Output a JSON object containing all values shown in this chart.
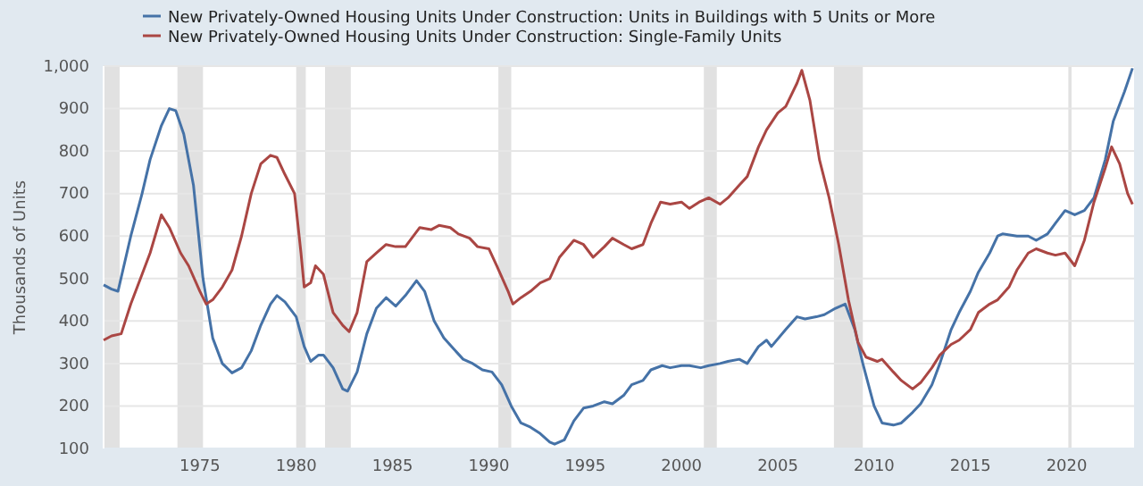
{
  "chart_data": {
    "type": "line",
    "ylabel": "Thousands of Units",
    "legend": "top left",
    "grid": "y",
    "line_style": "solid",
    "xlim": [
      "1970-01",
      "2023-07"
    ],
    "xticks": [
      {
        "value": "1975",
        "label": "1975"
      },
      {
        "value": "1980",
        "label": "1980"
      },
      {
        "value": "1985",
        "label": "1985"
      },
      {
        "value": "1990",
        "label": "1990"
      },
      {
        "value": "1995",
        "label": "1995"
      },
      {
        "value": "2000",
        "label": "2000"
      },
      {
        "value": "2005",
        "label": "2005"
      },
      {
        "value": "2010",
        "label": "2010"
      },
      {
        "value": "2015",
        "label": "2015"
      },
      {
        "value": "2020",
        "label": "2020"
      }
    ],
    "ylim": [
      100,
      1000
    ],
    "yticks": [
      100,
      200,
      300,
      400,
      500,
      600,
      700,
      800,
      900,
      {
        "value": 1000,
        "label": "1,000"
      }
    ],
    "bands": [
      {
        "axis": "x",
        "from": "1969-12",
        "to": "1970-11",
        "color": "#e1e1e1"
      },
      {
        "axis": "x",
        "from": "1973-11",
        "to": "1975-03",
        "color": "#e1e1e1"
      },
      {
        "axis": "x",
        "from": "1980-01",
        "to": "1980-07",
        "color": "#e1e1e1"
      },
      {
        "axis": "x",
        "from": "1981-07",
        "to": "1982-11",
        "color": "#e1e1e1"
      },
      {
        "axis": "x",
        "from": "1990-07",
        "to": "1991-03",
        "color": "#e1e1e1"
      },
      {
        "axis": "x",
        "from": "2001-03",
        "to": "2001-11",
        "color": "#e1e1e1"
      },
      {
        "axis": "x",
        "from": "2007-12",
        "to": "2009-06",
        "color": "#e1e1e1"
      },
      {
        "axis": "x",
        "from": "2020-02",
        "to": "2020-04",
        "color": "#e1e1e1"
      }
    ],
    "series": [
      {
        "name": "New Privately-Owned Housing Units Under Construction: Units in Buildings with 5 Units or More",
        "color": "#4572a7",
        "x": [
          "1970-01",
          "1970-06",
          "1970-10",
          "1971-06",
          "1972-01",
          "1972-06",
          "1973-01",
          "1973-06",
          "1973-10",
          "1974-03",
          "1974-09",
          "1975-03",
          "1975-09",
          "1976-03",
          "1976-09",
          "1977-03",
          "1977-09",
          "1978-03",
          "1978-09",
          "1979-01",
          "1979-06",
          "1980-01",
          "1980-06",
          "1980-10",
          "1981-03",
          "1981-06",
          "1981-12",
          "1982-06",
          "1982-09",
          "1983-03",
          "1983-09",
          "1984-03",
          "1984-09",
          "1985-03",
          "1985-09",
          "1986-04",
          "1986-09",
          "1987-03",
          "1987-09",
          "1988-03",
          "1988-09",
          "1989-03",
          "1989-09",
          "1990-03",
          "1990-09",
          "1991-03",
          "1991-09",
          "1992-03",
          "1992-09",
          "1993-03",
          "1993-06",
          "1993-12",
          "1994-06",
          "1994-12",
          "1995-06",
          "1996-01",
          "1996-06",
          "1997-01",
          "1997-06",
          "1998-01",
          "1998-06",
          "1999-01",
          "1999-06",
          "2000-01",
          "2000-06",
          "2001-01",
          "2001-06",
          "2002-01",
          "2002-06",
          "2003-01",
          "2003-06",
          "2004-01",
          "2004-06",
          "2004-09",
          "2005-06",
          "2006-01",
          "2006-06",
          "2007-01",
          "2007-06",
          "2008-01",
          "2008-07",
          "2009-01",
          "2009-06",
          "2010-01",
          "2010-06",
          "2011-01",
          "2011-06",
          "2012-01",
          "2012-06",
          "2013-01",
          "2013-06",
          "2014-01",
          "2014-06",
          "2015-01",
          "2015-06",
          "2016-01",
          "2016-06",
          "2016-09",
          "2017-06",
          "2018-01",
          "2018-06",
          "2019-01",
          "2019-06",
          "2019-12",
          "2020-06",
          "2020-12",
          "2021-06",
          "2022-01",
          "2022-06",
          "2023-01",
          "2023-06"
        ],
        "values": [
          485,
          475,
          470,
          600,
          700,
          780,
          860,
          900,
          895,
          840,
          720,
          500,
          360,
          300,
          278,
          290,
          330,
          390,
          440,
          460,
          445,
          410,
          340,
          305,
          320,
          320,
          290,
          240,
          235,
          280,
          370,
          430,
          455,
          435,
          460,
          495,
          470,
          400,
          360,
          335,
          310,
          300,
          285,
          280,
          250,
          200,
          160,
          150,
          135,
          115,
          110,
          120,
          165,
          195,
          200,
          210,
          205,
          225,
          250,
          260,
          285,
          295,
          290,
          295,
          295,
          290,
          295,
          300,
          305,
          310,
          300,
          340,
          355,
          340,
          380,
          410,
          405,
          410,
          415,
          430,
          440,
          380,
          300,
          200,
          160,
          155,
          160,
          185,
          205,
          250,
          300,
          380,
          420,
          470,
          515,
          560,
          600,
          605,
          600,
          600,
          590,
          605,
          630,
          660,
          650,
          660,
          690,
          780,
          870,
          940,
          995
        ]
      },
      {
        "name": "New Privately-Owned Housing Units Under Construction: Single-Family Units",
        "color": "#aa4643",
        "x": [
          "1970-01",
          "1970-06",
          "1970-12",
          "1971-06",
          "1972-01",
          "1972-06",
          "1973-01",
          "1973-06",
          "1974-01",
          "1974-06",
          "1975-01",
          "1975-05",
          "1975-09",
          "1976-03",
          "1976-09",
          "1977-03",
          "1977-09",
          "1978-03",
          "1978-09",
          "1979-01",
          "1979-06",
          "1979-12",
          "1980-04",
          "1980-06",
          "1980-10",
          "1981-01",
          "1981-06",
          "1981-12",
          "1982-06",
          "1982-10",
          "1983-03",
          "1983-09",
          "1984-03",
          "1984-09",
          "1985-03",
          "1985-09",
          "1986-06",
          "1987-01",
          "1987-06",
          "1988-01",
          "1988-06",
          "1989-01",
          "1989-06",
          "1990-01",
          "1990-06",
          "1991-01",
          "1991-04",
          "1991-09",
          "1992-03",
          "1992-09",
          "1993-03",
          "1993-09",
          "1994-06",
          "1994-12",
          "1995-06",
          "1996-01",
          "1996-06",
          "1997-01",
          "1997-06",
          "1998-01",
          "1998-06",
          "1998-12",
          "1999-06",
          "2000-01",
          "2000-06",
          "2000-12",
          "2001-06",
          "2002-01",
          "2002-06",
          "2003-01",
          "2003-06",
          "2004-01",
          "2004-06",
          "2005-01",
          "2005-06",
          "2006-01",
          "2006-04",
          "2006-09",
          "2007-03",
          "2007-09",
          "2008-03",
          "2008-09",
          "2009-03",
          "2009-08",
          "2010-03",
          "2010-06",
          "2011-01",
          "2011-06",
          "2012-01",
          "2012-06",
          "2013-01",
          "2013-06",
          "2014-01",
          "2014-06",
          "2015-01",
          "2015-06",
          "2016-01",
          "2016-06",
          "2017-01",
          "2017-06",
          "2018-01",
          "2018-06",
          "2019-01",
          "2019-06",
          "2019-12",
          "2020-06",
          "2020-12",
          "2021-06",
          "2022-01",
          "2022-05",
          "2022-10",
          "2023-03",
          "2023-06"
        ],
        "values": [
          355,
          365,
          370,
          440,
          510,
          560,
          650,
          620,
          560,
          530,
          470,
          440,
          450,
          480,
          520,
          600,
          700,
          770,
          790,
          785,
          745,
          700,
          560,
          480,
          490,
          530,
          510,
          420,
          390,
          375,
          420,
          540,
          560,
          580,
          575,
          575,
          620,
          615,
          625,
          620,
          605,
          595,
          575,
          570,
          530,
          470,
          440,
          455,
          470,
          490,
          500,
          550,
          590,
          580,
          550,
          575,
          595,
          580,
          570,
          580,
          630,
          680,
          675,
          680,
          665,
          680,
          690,
          675,
          690,
          720,
          740,
          810,
          850,
          890,
          905,
          960,
          990,
          920,
          780,
          690,
          580,
          450,
          350,
          315,
          305,
          310,
          280,
          260,
          240,
          255,
          290,
          320,
          345,
          355,
          380,
          420,
          440,
          450,
          480,
          520,
          560,
          570,
          560,
          555,
          560,
          530,
          590,
          680,
          760,
          810,
          770,
          700,
          675
        ]
      }
    ]
  }
}
